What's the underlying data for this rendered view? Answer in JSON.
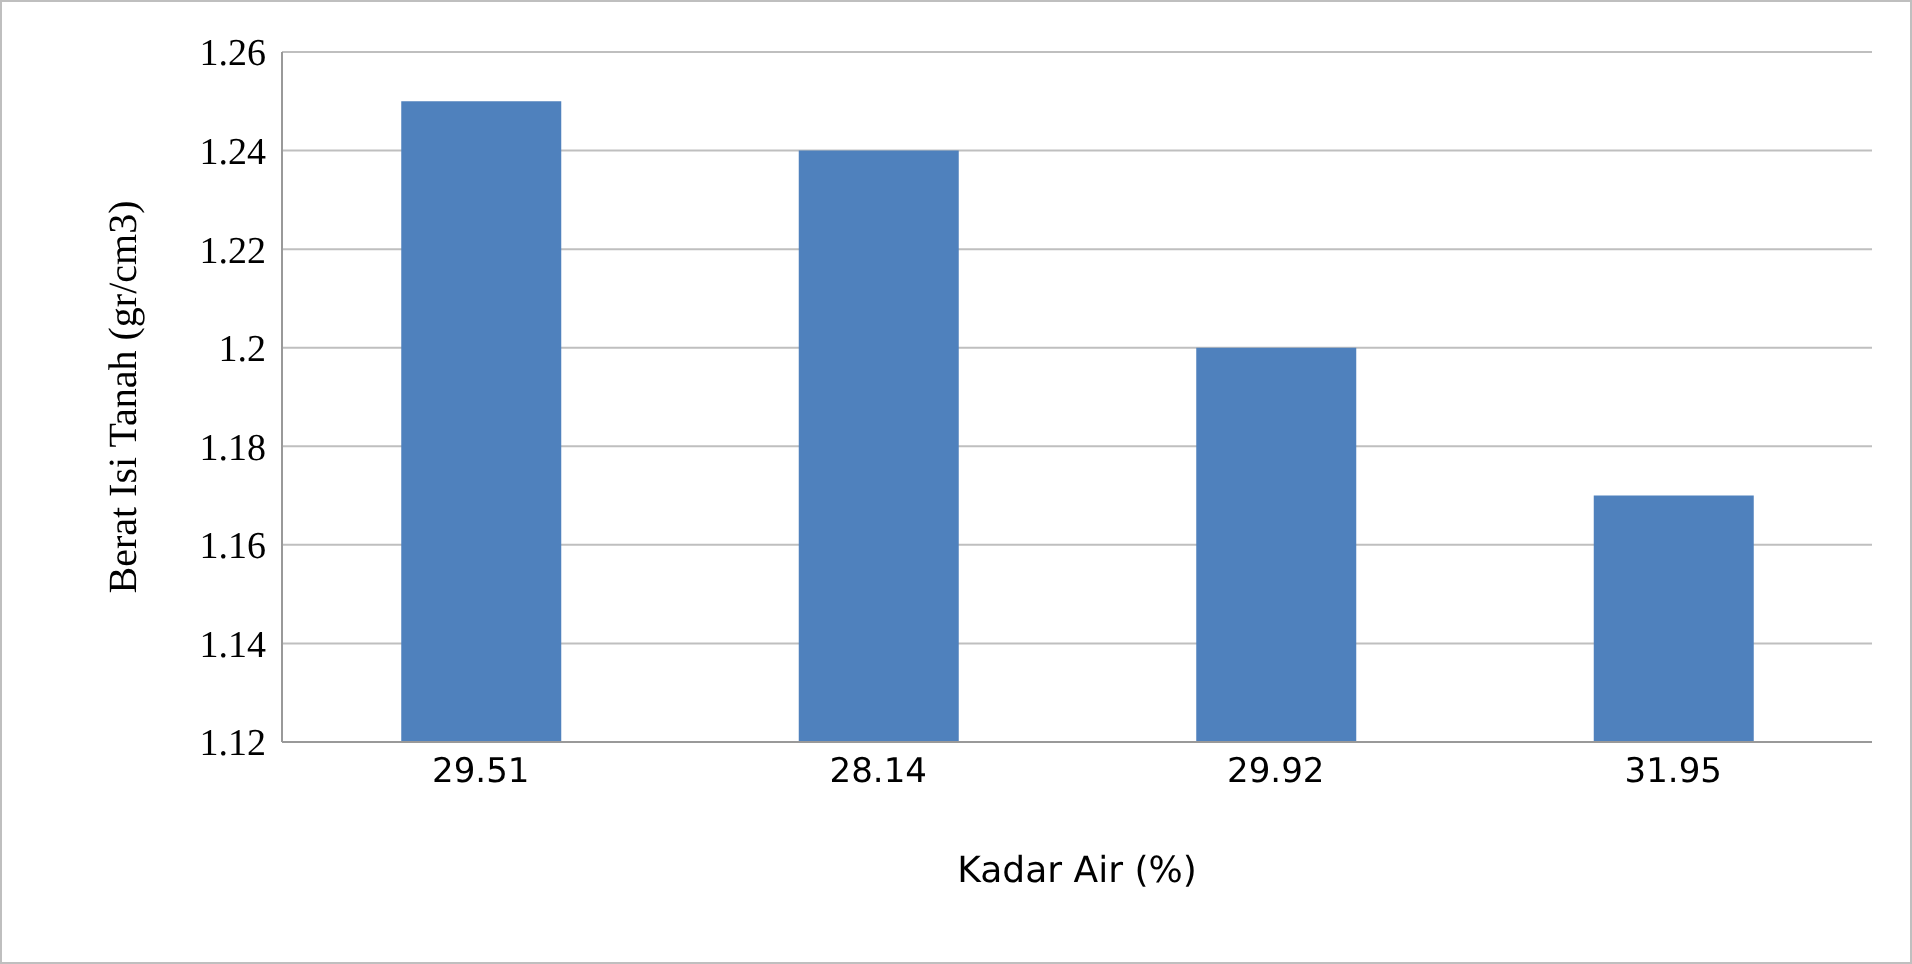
{
  "chart_data": {
    "type": "bar",
    "xlabel": "Kadar Air (%)",
    "ylabel": "Berat Isi Tanah  (gr/cm3)",
    "categories": [
      "29.51",
      "28.14",
      "29.92",
      "31.95"
    ],
    "values": [
      1.25,
      1.24,
      1.2,
      1.17
    ],
    "color": "#4f81bd",
    "ylim": [
      1.12,
      1.26
    ],
    "yticks": [
      1.12,
      1.14,
      1.16,
      1.18,
      1.2,
      1.22,
      1.24,
      1.26
    ],
    "grid": "y"
  }
}
